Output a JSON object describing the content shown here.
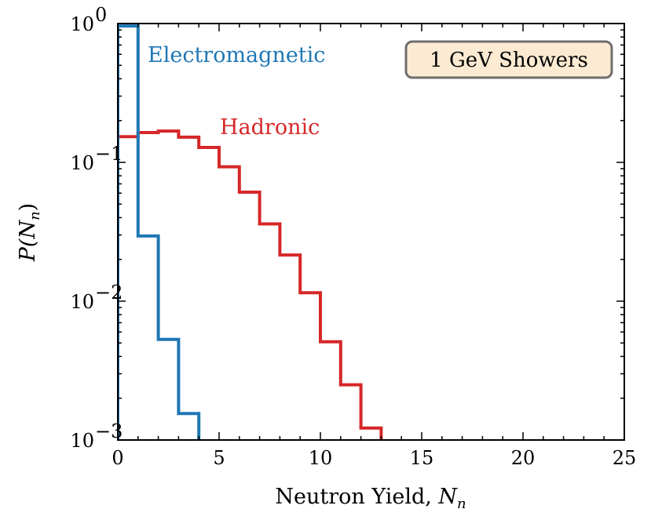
{
  "chart_data": {
    "type": "histogram-step",
    "xlabel": "Neutron Yield, ",
    "xlabel_var": "N",
    "xlabel_sub": "n",
    "ylabel": "P(N",
    "ylabel_sub": "n",
    "ylabel_close": ")",
    "xlim": [
      0,
      25
    ],
    "ylim": [
      0.001,
      1
    ],
    "yscale": "log",
    "grid": false,
    "x_ticks": [
      {
        "value": 0,
        "label": "0"
      },
      {
        "value": 5,
        "label": "5"
      },
      {
        "value": 10,
        "label": "10"
      },
      {
        "value": 15,
        "label": "15"
      },
      {
        "value": 20,
        "label": "20"
      },
      {
        "value": 25,
        "label": "25"
      }
    ],
    "y_ticks": [
      {
        "value": 1,
        "base": "10",
        "exp": "0"
      },
      {
        "value": 0.1,
        "base": "10",
        "exp": "−1"
      },
      {
        "value": 0.01,
        "base": "10",
        "exp": "−2"
      },
      {
        "value": 0.001,
        "base": "10",
        "exp": "−3"
      }
    ],
    "series": [
      {
        "name": "Electromagnetic",
        "color": "#1f77b4",
        "bin_edges": [
          0,
          1,
          2,
          3,
          4
        ],
        "values": [
          0.96,
          0.0295,
          0.0053,
          0.00155
        ]
      },
      {
        "name": "Hadronic",
        "color": "#d62728",
        "bin_edges": [
          0,
          1,
          2,
          3,
          4,
          5,
          6,
          7,
          8,
          9,
          10,
          11,
          12,
          13
        ],
        "values": [
          0.153,
          0.164,
          0.168,
          0.152,
          0.128,
          0.093,
          0.061,
          0.036,
          0.0215,
          0.0115,
          0.0051,
          0.0025,
          0.00122
        ]
      }
    ],
    "annotation": {
      "text": "1 GeV Showers",
      "position": "top-right",
      "background": "#fcebd2",
      "border": "#6e6e6e"
    }
  }
}
